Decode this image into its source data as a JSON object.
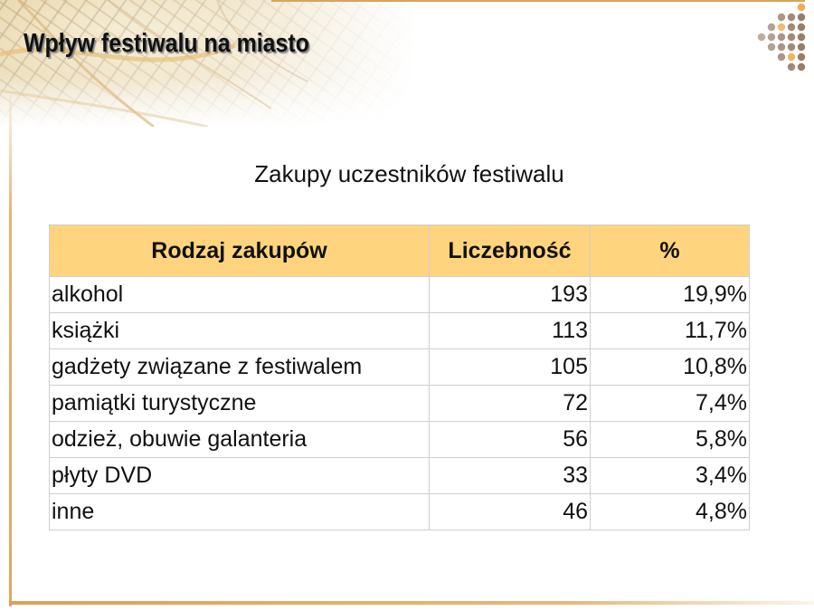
{
  "slide": {
    "title": "Wpływ festiwalu na miasto",
    "table_title": "Zakupy uczestników festiwalu"
  },
  "table": {
    "headers": [
      "Rodzaj zakupów",
      "Liczebność",
      "%"
    ],
    "rows": [
      {
        "category": "alkohol",
        "count": "193",
        "percent": "19,9%"
      },
      {
        "category": "książki",
        "count": "113",
        "percent": "11,7%"
      },
      {
        "category": "gadżety związane z festiwalem",
        "count": "105",
        "percent": "10,8%"
      },
      {
        "category": "pamiątki turystyczne",
        "count": "72",
        "percent": "7,4%"
      },
      {
        "category": "odzież, obuwie galanteria",
        "count": "56",
        "percent": "5,8%"
      },
      {
        "category": "płyty DVD",
        "count": "33",
        "percent": "3,4%"
      },
      {
        "category": "inne",
        "count": "46",
        "percent": "4,8%"
      }
    ]
  },
  "colors": {
    "header_fill": "#ffd47f",
    "frame_accent": "#d9a35a",
    "dots_brown": "#8a6a52",
    "dots_orange": "#e9a13a"
  }
}
